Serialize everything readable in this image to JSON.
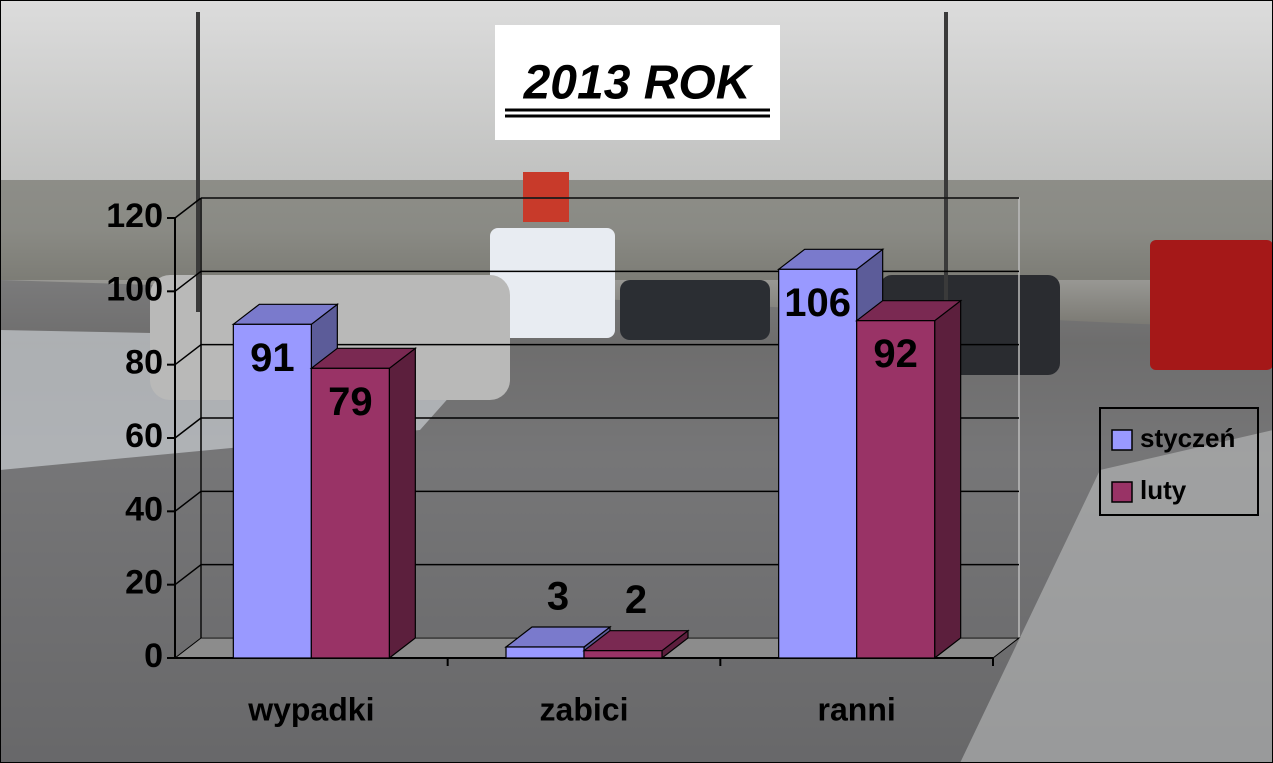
{
  "chart_data": {
    "type": "bar3d",
    "title": "2013 ROK",
    "categories": [
      "wypadki",
      "zabici",
      "ranni"
    ],
    "series": [
      {
        "name": "styczeń",
        "color": "#9999ff",
        "values": [
          91,
          3,
          106
        ]
      },
      {
        "name": "luty",
        "color": "#993366",
        "values": [
          79,
          2,
          92
        ]
      }
    ],
    "ylim": [
      0,
      120
    ],
    "yticks": [
      0,
      20,
      40,
      60,
      80,
      100,
      120
    ],
    "grid": true,
    "legend": "right"
  }
}
